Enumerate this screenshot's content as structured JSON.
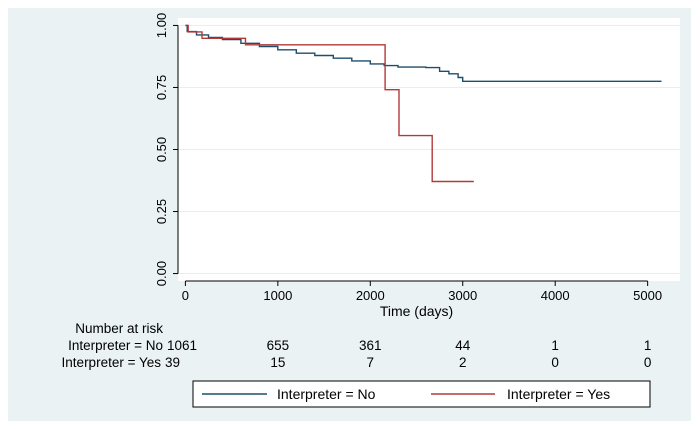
{
  "chart_data": {
    "type": "line",
    "subtype": "kaplan-meier",
    "xlabel": "Time (days)",
    "ylabel": "",
    "xlim": [
      -80,
      5350
    ],
    "ylim": [
      -0.03,
      1.03
    ],
    "x_ticks": [
      0,
      1000,
      2000,
      3000,
      4000,
      5000
    ],
    "y_ticks": [
      0.0,
      0.25,
      0.5,
      0.75,
      1.0
    ],
    "y_tick_labels": [
      "0.00",
      "0.25",
      "0.50",
      "0.75",
      "1.00"
    ],
    "grid": true,
    "series": [
      {
        "name": "Interpreter = No",
        "color": "#1f4e6b",
        "points": [
          [
            0,
            1.0
          ],
          [
            20,
            0.975
          ],
          [
            120,
            0.962
          ],
          [
            250,
            0.952
          ],
          [
            400,
            0.943
          ],
          [
            600,
            0.928
          ],
          [
            800,
            0.915
          ],
          [
            1000,
            0.902
          ],
          [
            1200,
            0.888
          ],
          [
            1400,
            0.879
          ],
          [
            1600,
            0.868
          ],
          [
            1800,
            0.857
          ],
          [
            2000,
            0.845
          ],
          [
            2150,
            0.838
          ],
          [
            2300,
            0.832
          ],
          [
            2600,
            0.83
          ],
          [
            2750,
            0.815
          ],
          [
            2850,
            0.805
          ],
          [
            2950,
            0.79
          ],
          [
            3000,
            0.775
          ],
          [
            3100,
            0.775
          ],
          [
            5150,
            0.775
          ]
        ]
      },
      {
        "name": "Interpreter = Yes",
        "color": "#b03a3a",
        "points": [
          [
            0,
            1.0
          ],
          [
            30,
            0.974
          ],
          [
            180,
            0.948
          ],
          [
            650,
            0.922
          ],
          [
            2160,
            0.741
          ],
          [
            2310,
            0.556
          ],
          [
            2670,
            0.371
          ],
          [
            3120,
            0.371
          ]
        ]
      }
    ],
    "risk_table": {
      "title": "Number at risk",
      "times": [
        0,
        1000,
        2000,
        3000,
        4000,
        5000
      ],
      "rows": [
        {
          "label": "Interpreter = No",
          "counts": [
            "1061",
            "655",
            "361",
            "44",
            "1",
            "1"
          ]
        },
        {
          "label": "Interpreter = Yes",
          "counts": [
            "39",
            "15",
            "7",
            "2",
            "0",
            "0"
          ]
        }
      ]
    },
    "legend": {
      "position": "bottom",
      "entries": [
        "Interpreter = No",
        "Interpreter = Yes"
      ]
    }
  }
}
